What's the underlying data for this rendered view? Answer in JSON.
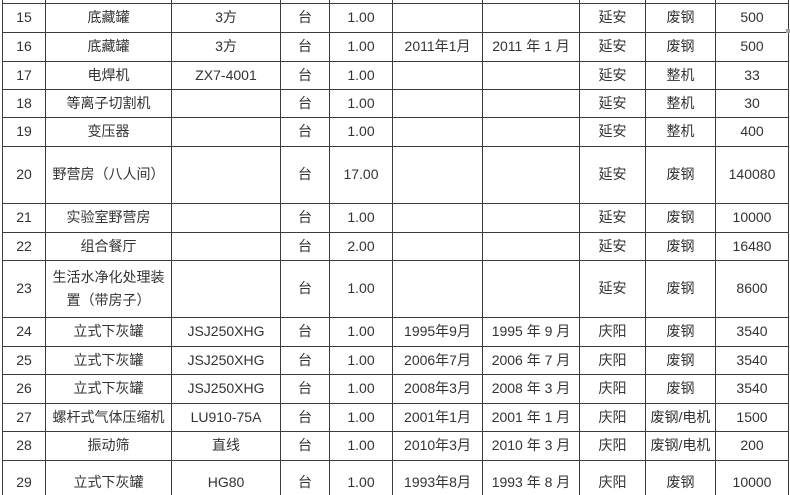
{
  "colors": {
    "background": "#ffffff",
    "grid_border": "#3c3c3c",
    "text": "#333333",
    "scrollbar_fragment": "#a3a3a3"
  },
  "table": {
    "columns": [
      "no",
      "name",
      "model",
      "unit",
      "qty",
      "date1",
      "date2",
      "location",
      "type",
      "value"
    ],
    "rows": [
      {
        "no": "15",
        "name": "底藏罐",
        "model": "3方",
        "unit": "台",
        "qty": "1.00",
        "date1": "",
        "date2": "",
        "location": "延安",
        "type": "废钢",
        "value": "500"
      },
      {
        "no": "16",
        "name": "底藏罐",
        "model": "3方",
        "unit": "台",
        "qty": "1.00",
        "date1": "2011年1月",
        "date2": "2011 年 1 月",
        "location": "延安",
        "type": "废钢",
        "value": "500"
      },
      {
        "no": "17",
        "name": "电焊机",
        "model": "ZX7-4001",
        "unit": "台",
        "qty": "1.00",
        "date1": "",
        "date2": "",
        "location": "延安",
        "type": "整机",
        "value": "33"
      },
      {
        "no": "18",
        "name": "等离子切割机",
        "model": "",
        "unit": "台",
        "qty": "1.00",
        "date1": "",
        "date2": "",
        "location": "延安",
        "type": "整机",
        "value": "30"
      },
      {
        "no": "19",
        "name": "变压器",
        "model": "",
        "unit": "台",
        "qty": "1.00",
        "date1": "",
        "date2": "",
        "location": "延安",
        "type": "整机",
        "value": "400"
      },
      {
        "no": "20",
        "name": "野营房（八人间）",
        "model": "",
        "unit": "台",
        "qty": "17.00",
        "date1": "",
        "date2": "",
        "location": "延安",
        "type": "废钢",
        "value": "140080"
      },
      {
        "no": "21",
        "name": "实验室野营房",
        "model": "",
        "unit": "台",
        "qty": "1.00",
        "date1": "",
        "date2": "",
        "location": "延安",
        "type": "废钢",
        "value": "10000"
      },
      {
        "no": "22",
        "name": "组合餐厅",
        "model": "",
        "unit": "台",
        "qty": "2.00",
        "date1": "",
        "date2": "",
        "location": "延安",
        "type": "废钢",
        "value": "16480"
      },
      {
        "no": "23",
        "name": "生活水净化处理装置（带房子）",
        "model": "",
        "unit": "台",
        "qty": "1.00",
        "date1": "",
        "date2": "",
        "location": "延安",
        "type": "废钢",
        "value": "8600"
      },
      {
        "no": "24",
        "name": "立式下灰罐",
        "model": "JSJ250XHG",
        "unit": "台",
        "qty": "1.00",
        "date1": "1995年9月",
        "date2": "1995 年 9 月",
        "location": "庆阳",
        "type": "废钢",
        "value": "3540"
      },
      {
        "no": "25",
        "name": "立式下灰罐",
        "model": "JSJ250XHG",
        "unit": "台",
        "qty": "1.00",
        "date1": "2006年7月",
        "date2": "2006 年 7 月",
        "location": "庆阳",
        "type": "废钢",
        "value": "3540"
      },
      {
        "no": "26",
        "name": "立式下灰罐",
        "model": "JSJ250XHG",
        "unit": "台",
        "qty": "1.00",
        "date1": "2008年3月",
        "date2": "2008 年 3 月",
        "location": "庆阳",
        "type": "废钢",
        "value": "3540"
      },
      {
        "no": "27",
        "name": "螺杆式气体压缩机",
        "model": "LU910-75A",
        "unit": "台",
        "qty": "1.00",
        "date1": "2001年1月",
        "date2": "2001 年 1 月",
        "location": "庆阳",
        "type": "废钢/电机",
        "value": "1500"
      },
      {
        "no": "28",
        "name": "振动筛",
        "model": "直线",
        "unit": "台",
        "qty": "1.00",
        "date1": "2010年3月",
        "date2": "2010 年 3 月",
        "location": "庆阳",
        "type": "废钢/电机",
        "value": "200"
      },
      {
        "no": "29",
        "name": "立式下灰罐",
        "model": "HG80",
        "unit": "台",
        "qty": "1.00",
        "date1": "1993年8月",
        "date2": "1993 年 8 月",
        "location": "庆阳",
        "type": "废钢",
        "value": "10000"
      }
    ]
  }
}
